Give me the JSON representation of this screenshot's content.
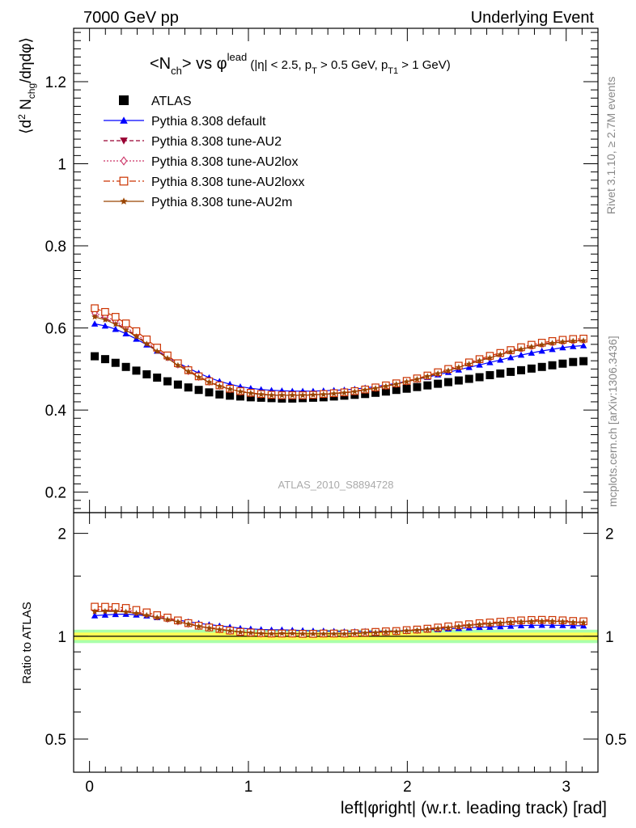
{
  "header": {
    "left": "7000 GeV pp",
    "right": "Underlying Event"
  },
  "side_labels": {
    "rivet": "Rivet 3.1.10, ≥ 2.7M events",
    "mcplots": "mcplots.cern.ch [arXiv:1306.3436]"
  },
  "chart_data": {
    "type": "scatter",
    "title": "<N_ch> vs φ^lead (|η| < 2.5, p_T > 0.5 GeV, p_T1 > 1 GeV)",
    "analysis_id": "ATLAS_2010_S8894728",
    "xlabel": "left|φright| (w.r.t. leading track) [rad]",
    "ylabel": "⟨d² N_chg/dηdφ⟩",
    "ratio_ylabel": "Ratio to ATLAS",
    "xlim": [
      -0.1,
      3.2
    ],
    "ylim": [
      0.15,
      1.33
    ],
    "ratio_ylim": [
      0.4,
      2.3
    ],
    "ratio_scale": "log",
    "x_ticks": [
      "0",
      "1",
      "2",
      "3"
    ],
    "y_ticks": [
      "0.2",
      "0.4",
      "0.6",
      "0.8",
      "1",
      "1.2"
    ],
    "ratio_ticks": [
      "0.5",
      "1",
      "2"
    ],
    "legend_position": "top-left",
    "x": [
      0.0327,
      0.0982,
      0.1636,
      0.2291,
      0.2945,
      0.36,
      0.4254,
      0.4909,
      0.5563,
      0.6218,
      0.6872,
      0.7527,
      0.8181,
      0.8836,
      0.949,
      1.0145,
      1.0799,
      1.1454,
      1.2108,
      1.2763,
      1.3417,
      1.4072,
      1.4726,
      1.5381,
      1.6035,
      1.669,
      1.7344,
      1.7999,
      1.8653,
      1.9308,
      1.9962,
      2.0617,
      2.1271,
      2.1926,
      2.258,
      2.3235,
      2.3889,
      2.4544,
      2.5198,
      2.5853,
      2.6507,
      2.7162,
      2.7816,
      2.8471,
      2.9125,
      2.978,
      3.0434,
      3.1089
    ],
    "series": [
      {
        "name": "ATLAS",
        "color": "#000000",
        "marker": "filled-square",
        "values": [
          0.531,
          0.524,
          0.515,
          0.505,
          0.496,
          0.487,
          0.479,
          0.47,
          0.462,
          0.455,
          0.449,
          0.443,
          0.438,
          0.435,
          0.433,
          0.431,
          0.43,
          0.429,
          0.428,
          0.428,
          0.429,
          0.43,
          0.431,
          0.433,
          0.435,
          0.437,
          0.439,
          0.442,
          0.445,
          0.449,
          0.452,
          0.456,
          0.46,
          0.464,
          0.468,
          0.472,
          0.476,
          0.48,
          0.485,
          0.489,
          0.493,
          0.497,
          0.501,
          0.505,
          0.509,
          0.513,
          0.517,
          0.519
        ]
      },
      {
        "name": "Pythia 8.308 default",
        "color": "#0000ff",
        "marker": "filled-triangle-up",
        "line": "solid",
        "values": [
          0.61,
          0.605,
          0.597,
          0.586,
          0.573,
          0.559,
          0.544,
          0.53,
          0.515,
          0.502,
          0.49,
          0.479,
          0.47,
          0.463,
          0.457,
          0.453,
          0.45,
          0.448,
          0.447,
          0.446,
          0.446,
          0.446,
          0.447,
          0.448,
          0.449,
          0.451,
          0.454,
          0.457,
          0.461,
          0.465,
          0.47,
          0.475,
          0.48,
          0.486,
          0.492,
          0.498,
          0.504,
          0.51,
          0.516,
          0.522,
          0.528,
          0.534,
          0.539,
          0.544,
          0.548,
          0.552,
          0.555,
          0.557
        ]
      },
      {
        "name": "Pythia 8.308 tune-AU2",
        "color": "#990033",
        "marker": "filled-triangle-down",
        "line": "dashed",
        "values": [
          0.631,
          0.623,
          0.612,
          0.598,
          0.581,
          0.563,
          0.545,
          0.527,
          0.51,
          0.494,
          0.48,
          0.468,
          0.458,
          0.451,
          0.445,
          0.441,
          0.438,
          0.436,
          0.436,
          0.436,
          0.436,
          0.437,
          0.438,
          0.44,
          0.442,
          0.445,
          0.449,
          0.453,
          0.458,
          0.463,
          0.469,
          0.475,
          0.482,
          0.489,
          0.497,
          0.505,
          0.513,
          0.521,
          0.528,
          0.536,
          0.543,
          0.549,
          0.555,
          0.56,
          0.564,
          0.567,
          0.569,
          0.57
        ]
      },
      {
        "name": "Pythia 8.308 tune-AU2lox",
        "color": "#cc3366",
        "marker": "open-diamond",
        "line": "dotted",
        "values": [
          0.636,
          0.628,
          0.617,
          0.602,
          0.585,
          0.566,
          0.548,
          0.529,
          0.511,
          0.495,
          0.481,
          0.469,
          0.459,
          0.451,
          0.445,
          0.441,
          0.438,
          0.437,
          0.436,
          0.436,
          0.436,
          0.437,
          0.439,
          0.441,
          0.443,
          0.446,
          0.45,
          0.454,
          0.459,
          0.464,
          0.47,
          0.476,
          0.483,
          0.49,
          0.498,
          0.506,
          0.514,
          0.522,
          0.529,
          0.537,
          0.544,
          0.55,
          0.556,
          0.561,
          0.565,
          0.568,
          0.57,
          0.571
        ]
      },
      {
        "name": "Pythia 8.308 tune-AU2loxx",
        "color": "#cc3300",
        "marker": "open-square",
        "line": "dashdot",
        "values": [
          0.648,
          0.639,
          0.627,
          0.611,
          0.592,
          0.572,
          0.552,
          0.533,
          0.514,
          0.497,
          0.482,
          0.47,
          0.46,
          0.452,
          0.446,
          0.442,
          0.439,
          0.437,
          0.436,
          0.436,
          0.436,
          0.437,
          0.439,
          0.441,
          0.443,
          0.446,
          0.45,
          0.455,
          0.46,
          0.465,
          0.471,
          0.477,
          0.484,
          0.492,
          0.5,
          0.508,
          0.516,
          0.524,
          0.532,
          0.539,
          0.546,
          0.553,
          0.559,
          0.564,
          0.568,
          0.571,
          0.573,
          0.574
        ]
      },
      {
        "name": "Pythia 8.308 tune-AU2m",
        "color": "#994400",
        "marker": "filled-star",
        "line": "solid",
        "values": [
          0.627,
          0.62,
          0.609,
          0.595,
          0.579,
          0.561,
          0.543,
          0.526,
          0.509,
          0.494,
          0.48,
          0.468,
          0.458,
          0.451,
          0.445,
          0.441,
          0.438,
          0.436,
          0.436,
          0.436,
          0.436,
          0.437,
          0.438,
          0.44,
          0.442,
          0.445,
          0.449,
          0.453,
          0.458,
          0.463,
          0.469,
          0.475,
          0.482,
          0.489,
          0.496,
          0.504,
          0.512,
          0.52,
          0.527,
          0.535,
          0.542,
          0.548,
          0.554,
          0.559,
          0.563,
          0.566,
          0.568,
          0.569
        ]
      }
    ],
    "ratio_band": {
      "inner_color": "#ffff55",
      "outer_color": "#aaffaa",
      "inner_halfwidth": 0.025,
      "outer_halfwidth": 0.045
    }
  }
}
